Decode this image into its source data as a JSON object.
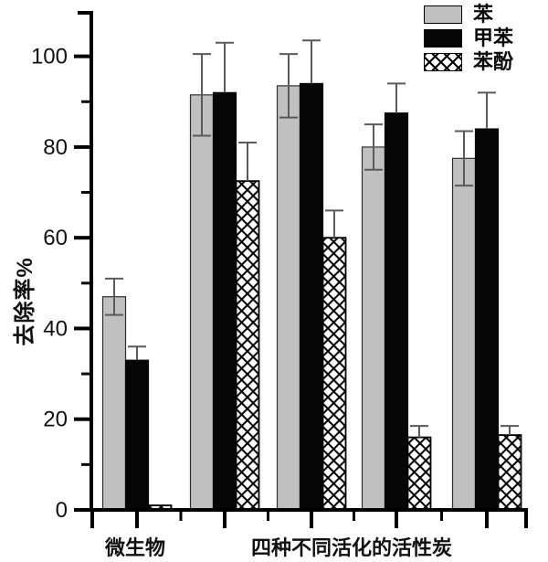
{
  "chart_data": {
    "type": "bar",
    "title": "",
    "ylabel": "去除率%",
    "xlabel": "",
    "ylim": [
      0,
      110
    ],
    "yticks": [
      0,
      20,
      40,
      60,
      80,
      100
    ],
    "yticks_minor": [
      10,
      30,
      50,
      70,
      90
    ],
    "grid": false,
    "legend_position": "top-right",
    "groups": 5,
    "x_labels": [
      {
        "text": "微生物",
        "group_index": 0
      },
      {
        "text": "四种不同活化的活性炭",
        "group_span": [
          1,
          4
        ]
      }
    ],
    "series": [
      {
        "name": "苯",
        "style": "gray",
        "color": "#c0c0c0",
        "values": [
          47,
          91.5,
          93.5,
          80,
          77.5
        ],
        "errors": [
          4,
          9,
          7,
          5,
          6
        ]
      },
      {
        "name": "甲苯",
        "style": "black",
        "color": "#060606",
        "values": [
          33,
          92,
          94,
          87.5,
          84
        ],
        "errors": [
          3,
          11,
          9.5,
          6.5,
          8
        ]
      },
      {
        "name": "苯酚",
        "style": "crosshatch",
        "color": "#ffffff",
        "values": [
          1,
          72.5,
          60,
          16,
          16.5
        ],
        "errors": [
          0,
          8.5,
          6,
          2.5,
          2
        ]
      }
    ],
    "error_bar_color": "#5a5a5a",
    "axis_color": "#000000"
  }
}
